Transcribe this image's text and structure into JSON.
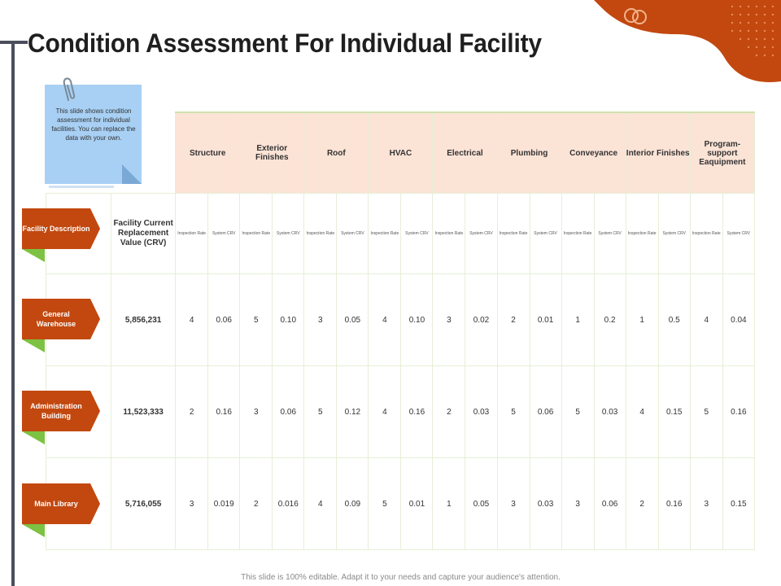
{
  "title": "Condition Assessment For Individual Facility",
  "note": "This slide shows condition assessment for individual facilities. You can replace the data with your own.",
  "categories": [
    "Structure",
    "Exterior Finishes",
    "Roof",
    "HVAC",
    "Electrical",
    "Plumbing",
    "Conveyance",
    "Interior Finishes",
    "Program-support Eaquipment"
  ],
  "sub_labels": {
    "rate": "Inspection Rate",
    "crv": "System CRV"
  },
  "row_labels": {
    "description": "Facility Description",
    "crv_header": "Facility Current Replacement Value (CRV)"
  },
  "facilities": [
    {
      "name": "General Warehouse",
      "crv": "5,856,231",
      "values": [
        "4",
        "0.06",
        "5",
        "0.10",
        "3",
        "0.05",
        "4",
        "0.10",
        "3",
        "0.02",
        "2",
        "0.01",
        "1",
        "0.2",
        "1",
        "0.5",
        "4",
        "0.04"
      ]
    },
    {
      "name": "Administration Building",
      "crv": "11,523,333",
      "values": [
        "2",
        "0.16",
        "3",
        "0.06",
        "5",
        "0.12",
        "4",
        "0.16",
        "2",
        "0.03",
        "5",
        "0.06",
        "5",
        "0.03",
        "4",
        "0.15",
        "5",
        "0.16"
      ]
    },
    {
      "name": "Main Library",
      "crv": "5,716,055",
      "values": [
        "3",
        "0.019",
        "2",
        "0.016",
        "4",
        "0.09",
        "5",
        "0.01",
        "1",
        "0.05",
        "3",
        "0.03",
        "3",
        "0.06",
        "2",
        "0.16",
        "3",
        "0.15"
      ]
    }
  ],
  "footer": "This slide is 100% editable. Adapt it to your needs and capture your audience's attention.",
  "colors": {
    "accent": "#c2480f",
    "green": "#7dc242",
    "header_bg": "#fbe3d6",
    "note_bg": "#a8d0f4"
  }
}
